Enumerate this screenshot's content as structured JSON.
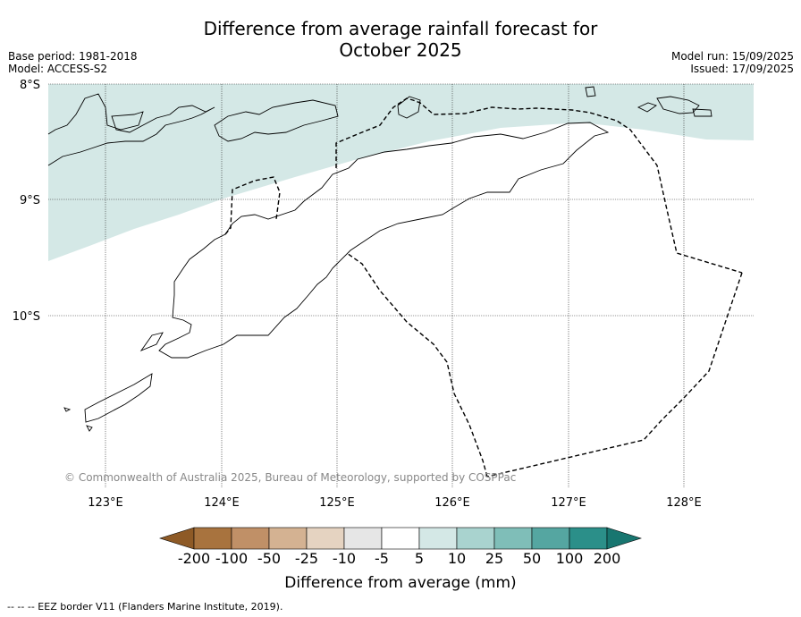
{
  "title_line1": "Difference from average rainfall forecast for",
  "title_line2": "October 2025",
  "meta_left": {
    "line1": "Base period: 1981-2018",
    "line2": "Model: ACCESS-S2"
  },
  "meta_right": {
    "line1": "Model run: 15/09/2025",
    "line2": "Issued: 17/09/2025"
  },
  "axes": {
    "lat_labels": [
      "8°S",
      "9°S",
      "10°S"
    ],
    "lon_labels": [
      "123°E",
      "124°E",
      "125°E",
      "126°E",
      "127°E",
      "128°E"
    ]
  },
  "copyright": "© Commonwealth of Australia 2025, Bureau of Meteorology, supported by COSPPac",
  "colorbar": {
    "label": "Difference from average (mm)",
    "ticks": [
      "-200",
      "-100",
      "-50",
      "-25",
      "-10",
      "-5",
      "5",
      "10",
      "25",
      "50",
      "100",
      "200"
    ],
    "colors": [
      "#8e5a26",
      "#a8733e",
      "#c09067",
      "#d4b292",
      "#e5d3c1",
      "#e6e6e6",
      "#ffffff",
      "#d4e8e6",
      "#a9d3cf",
      "#7fbeb8",
      "#55a6a1",
      "#2b8f89",
      "#187670"
    ]
  },
  "map_fill_color": "#d4e8e6",
  "footnote": "--  --  -- EEZ border V11 (Flanders Marine Institute, 2019)."
}
